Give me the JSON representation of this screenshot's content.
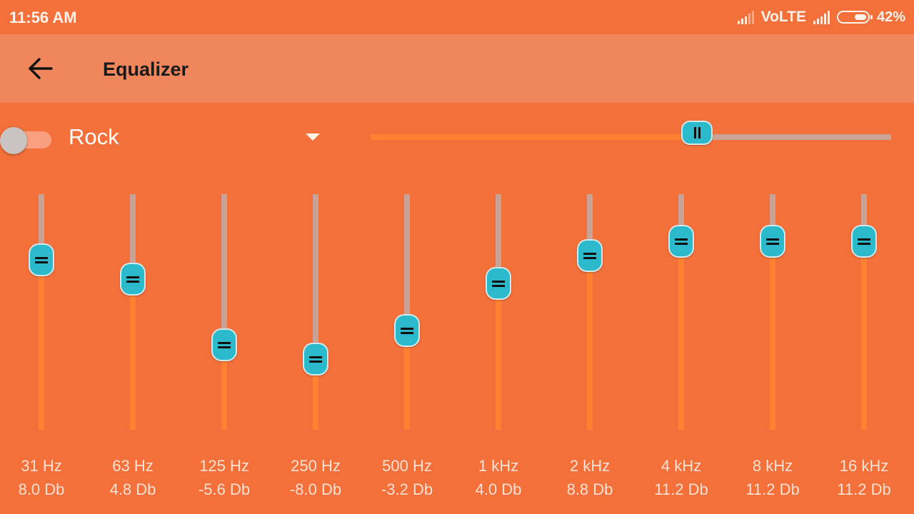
{
  "status_bar": {
    "time": "11:56 AM",
    "network_label": "VoLTE",
    "battery_percent": "42%",
    "battery_level": 0.42
  },
  "app_bar": {
    "back_icon": "arrow-left-icon",
    "title": "Equalizer"
  },
  "controls": {
    "enabled": false,
    "preset": "Rock",
    "dropdown_icon": "caret-down-icon",
    "slider_level": 0.627
  },
  "bands": [
    {
      "freq": "31 Hz",
      "gain": "8.0 Db",
      "level": 0.72
    },
    {
      "freq": "63 Hz",
      "gain": "4.8 Db",
      "level": 0.64
    },
    {
      "freq": "125 Hz",
      "gain": "-5.6 Db",
      "level": 0.36
    },
    {
      "freq": "250 Hz",
      "gain": "-8.0 Db",
      "level": 0.3
    },
    {
      "freq": "500 Hz",
      "gain": "-3.2 Db",
      "level": 0.42
    },
    {
      "freq": "1 kHz",
      "gain": "4.0 Db",
      "level": 0.62
    },
    {
      "freq": "2 kHz",
      "gain": "8.8 Db",
      "level": 0.74
    },
    {
      "freq": "4 kHz",
      "gain": "11.2 Db",
      "level": 0.8
    },
    {
      "freq": "8 kHz",
      "gain": "11.2 Db",
      "level": 0.8
    },
    {
      "freq": "16 kHz",
      "gain": "11.2 Db",
      "level": 0.8
    }
  ],
  "colors": {
    "background": "#F3703B",
    "app_bar": "#F0875C",
    "thumb": "#2BBACB",
    "track_active": "#FF8233",
    "track_inactive": "#C9A394"
  }
}
